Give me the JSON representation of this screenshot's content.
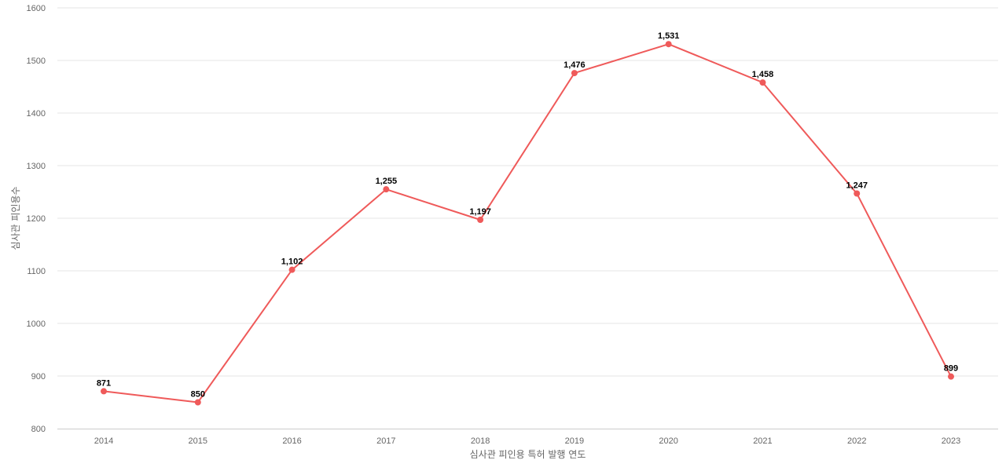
{
  "chart_data": {
    "type": "line",
    "xlabel": "심사관 피인용 특허 발행 연도",
    "ylabel": "심사관 피인용수",
    "categories": [
      "2014",
      "2015",
      "2016",
      "2017",
      "2018",
      "2019",
      "2020",
      "2021",
      "2022",
      "2023"
    ],
    "series": [
      {
        "values": [
          871,
          850,
          1102,
          1255,
          1197,
          1476,
          1531,
          1458,
          1247,
          899
        ],
        "data_labels": [
          "871",
          "850",
          "1,102",
          "1,255",
          "1,197",
          "1,476",
          "1,531",
          "1,458",
          "1,247",
          "899"
        ],
        "color": "#ef5a5a"
      }
    ],
    "ylim": [
      800,
      1600
    ],
    "yticks": [
      "800",
      "900",
      "1000",
      "1100",
      "1200",
      "1300",
      "1400",
      "1500",
      "1600"
    ],
    "grid": true,
    "legend": "none"
  }
}
